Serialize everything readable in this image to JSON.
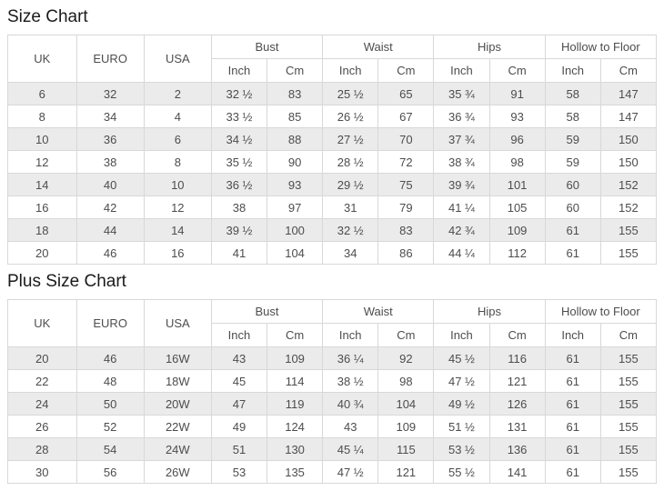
{
  "colors": {
    "row_alt_background": "#ebebeb",
    "border": "#d8d8d8",
    "text": "#4d4d4d",
    "title_text": "#1a1a1a",
    "page_background": "#ffffff"
  },
  "tables": [
    {
      "title": "Size Chart",
      "header": {
        "simple_columns": [
          "UK",
          "EURO",
          "USA"
        ],
        "measure_groups": [
          {
            "label": "Bust",
            "sub": [
              "Inch",
              "Cm"
            ]
          },
          {
            "label": "Waist",
            "sub": [
              "Inch",
              "Cm"
            ]
          },
          {
            "label": "Hips",
            "sub": [
              "Inch",
              "Cm"
            ]
          },
          {
            "label": "Hollow to Floor",
            "sub": [
              "Inch",
              "Cm"
            ]
          }
        ]
      },
      "rows": [
        [
          "6",
          "32",
          "2",
          "32 ½",
          "83",
          "25 ½",
          "65",
          "35 ¾",
          "91",
          "58",
          "147"
        ],
        [
          "8",
          "34",
          "4",
          "33 ½",
          "85",
          "26 ½",
          "67",
          "36 ¾",
          "93",
          "58",
          "147"
        ],
        [
          "10",
          "36",
          "6",
          "34 ½",
          "88",
          "27 ½",
          "70",
          "37 ¾",
          "96",
          "59",
          "150"
        ],
        [
          "12",
          "38",
          "8",
          "35 ½",
          "90",
          "28 ½",
          "72",
          "38 ¾",
          "98",
          "59",
          "150"
        ],
        [
          "14",
          "40",
          "10",
          "36 ½",
          "93",
          "29 ½",
          "75",
          "39 ¾",
          "101",
          "60",
          "152"
        ],
        [
          "16",
          "42",
          "12",
          "38",
          "97",
          "31",
          "79",
          "41 ¼",
          "105",
          "60",
          "152"
        ],
        [
          "18",
          "44",
          "14",
          "39 ½",
          "100",
          "32 ½",
          "83",
          "42 ¾",
          "109",
          "61",
          "155"
        ],
        [
          "20",
          "46",
          "16",
          "41",
          "104",
          "34",
          "86",
          "44 ¼",
          "112",
          "61",
          "155"
        ]
      ]
    },
    {
      "title": "Plus Size Chart",
      "header": {
        "simple_columns": [
          "UK",
          "EURO",
          "USA"
        ],
        "measure_groups": [
          {
            "label": "Bust",
            "sub": [
              "Inch",
              "Cm"
            ]
          },
          {
            "label": "Waist",
            "sub": [
              "Inch",
              "Cm"
            ]
          },
          {
            "label": "Hips",
            "sub": [
              "Inch",
              "Cm"
            ]
          },
          {
            "label": "Hollow to Floor",
            "sub": [
              "Inch",
              "Cm"
            ]
          }
        ]
      },
      "rows": [
        [
          "20",
          "46",
          "16W",
          "43",
          "109",
          "36 ¼",
          "92",
          "45 ½",
          "116",
          "61",
          "155"
        ],
        [
          "22",
          "48",
          "18W",
          "45",
          "114",
          "38 ½",
          "98",
          "47 ½",
          "121",
          "61",
          "155"
        ],
        [
          "24",
          "50",
          "20W",
          "47",
          "119",
          "40 ¾",
          "104",
          "49 ½",
          "126",
          "61",
          "155"
        ],
        [
          "26",
          "52",
          "22W",
          "49",
          "124",
          "43",
          "109",
          "51 ½",
          "131",
          "61",
          "155"
        ],
        [
          "28",
          "54",
          "24W",
          "51",
          "130",
          "45 ¼",
          "115",
          "53 ½",
          "136",
          "61",
          "155"
        ],
        [
          "30",
          "56",
          "26W",
          "53",
          "135",
          "47 ½",
          "121",
          "55 ½",
          "141",
          "61",
          "155"
        ]
      ]
    }
  ]
}
